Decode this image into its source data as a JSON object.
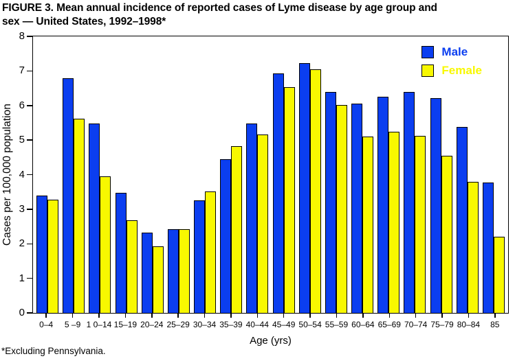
{
  "figure": {
    "title_line1": "FIGURE 3. Mean annual incidence of reported cases of Lyme disease by age group and",
    "title_line2": "sex — United States, 1992–1998*",
    "footnote": "*Excluding Pennsylvania."
  },
  "chart_data": {
    "type": "bar",
    "title": "FIGURE 3. Mean annual incidence of reported cases of Lyme disease by age group and sex — United States, 1992–1998*",
    "xlabel": "Age (yrs)",
    "ylabel": "Cases per 100,000 population",
    "ylim": [
      0,
      8
    ],
    "yticks": [
      0,
      1,
      2,
      3,
      4,
      5,
      6,
      7,
      8
    ],
    "grid": false,
    "legend_position": "top-right",
    "categories": [
      "0–4",
      "5 –9",
      "1 0–14",
      "15–19",
      "20–24",
      "25–29",
      "30–34",
      "35–39",
      "40–44",
      "45–49",
      "50–54",
      "55–59",
      "60–64",
      "65–69",
      "70–74",
      "75–79",
      "80–84",
      "85"
    ],
    "series": [
      {
        "name": "Male",
        "color": "#0B3EF0",
        "values": [
          3.4,
          6.78,
          5.47,
          3.47,
          2.33,
          2.43,
          3.26,
          4.45,
          5.47,
          6.93,
          7.22,
          6.4,
          6.05,
          6.25,
          6.4,
          6.22,
          5.38,
          3.78
        ]
      },
      {
        "name": "Female",
        "color": "#F8F800",
        "values": [
          3.28,
          5.62,
          3.95,
          2.68,
          1.92,
          2.43,
          3.52,
          4.82,
          5.17,
          6.53,
          7.05,
          6.02,
          5.1,
          5.25,
          5.12,
          4.55,
          3.8,
          2.2
        ]
      }
    ]
  }
}
